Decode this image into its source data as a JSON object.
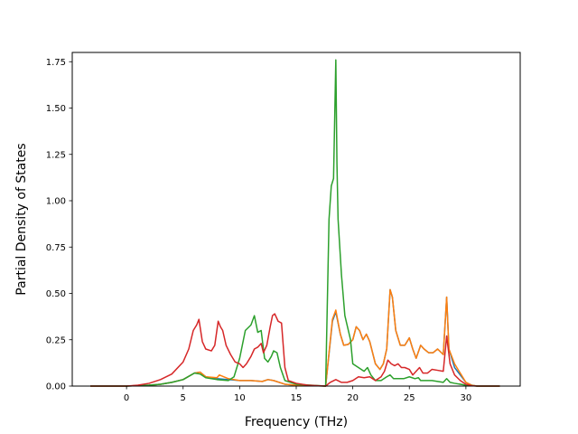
{
  "chart_data": {
    "type": "line",
    "title": "",
    "xlabel": "Frequency (THz)",
    "ylabel": "Partial Density of States",
    "xlim": [
      -4.8,
      34.8
    ],
    "ylim": [
      0.0,
      1.8
    ],
    "xticks": [
      0,
      5,
      10,
      15,
      20,
      25,
      30
    ],
    "xtick_labels": [
      "0",
      "5",
      "10",
      "15",
      "20",
      "25",
      "30"
    ],
    "yticks": [
      0.0,
      0.25,
      0.5,
      0.75,
      1.0,
      1.25,
      1.5,
      1.75
    ],
    "ytick_labels": [
      "0.00",
      "0.25",
      "0.50",
      "0.75",
      "1.00",
      "1.25",
      "1.50",
      "1.75"
    ],
    "grid": false,
    "legend": false,
    "series": [
      {
        "color": "#1f77b4",
        "points": [
          [
            -3.2,
            0
          ],
          [
            0,
            0
          ],
          [
            2,
            0.005
          ],
          [
            3,
            0.01
          ],
          [
            4,
            0.02
          ],
          [
            5,
            0.035
          ],
          [
            6,
            0.07
          ],
          [
            6.5,
            0.075
          ],
          [
            7,
            0.05
          ],
          [
            8,
            0.04
          ],
          [
            9,
            0.035
          ],
          [
            10,
            0.03
          ],
          [
            11,
            0.03
          ],
          [
            12,
            0.025
          ],
          [
            12.5,
            0.035
          ],
          [
            13,
            0.03
          ],
          [
            14,
            0.01
          ],
          [
            15,
            0.005
          ],
          [
            17.6,
            0
          ],
          [
            18.2,
            0.35
          ],
          [
            18.5,
            0.4
          ],
          [
            18.9,
            0.28
          ],
          [
            19.2,
            0.22
          ],
          [
            19.6,
            0.225
          ],
          [
            20,
            0.25
          ],
          [
            20.3,
            0.32
          ],
          [
            20.6,
            0.3
          ],
          [
            20.9,
            0.25
          ],
          [
            21.2,
            0.28
          ],
          [
            21.5,
            0.24
          ],
          [
            22,
            0.12
          ],
          [
            22.4,
            0.09
          ],
          [
            22.7,
            0.12
          ],
          [
            23,
            0.2
          ],
          [
            23.3,
            0.52
          ],
          [
            23.5,
            0.48
          ],
          [
            23.8,
            0.3
          ],
          [
            24.2,
            0.22
          ],
          [
            24.6,
            0.22
          ],
          [
            25,
            0.26
          ],
          [
            25.3,
            0.2
          ],
          [
            25.6,
            0.15
          ],
          [
            26,
            0.22
          ],
          [
            26.3,
            0.2
          ],
          [
            26.7,
            0.18
          ],
          [
            27.1,
            0.18
          ],
          [
            27.5,
            0.2
          ],
          [
            28,
            0.17
          ],
          [
            28.3,
            0.48
          ],
          [
            28.5,
            0.2
          ],
          [
            29,
            0.1
          ],
          [
            29.5,
            0.06
          ],
          [
            30,
            0.02
          ],
          [
            30.5,
            0.005
          ],
          [
            31,
            0
          ],
          [
            33,
            0
          ]
        ]
      },
      {
        "color": "#ff7f0e",
        "points": [
          [
            -3.2,
            0
          ],
          [
            0,
            0
          ],
          [
            2,
            0.005
          ],
          [
            3,
            0.01
          ],
          [
            4,
            0.02
          ],
          [
            5,
            0.035
          ],
          [
            6,
            0.07
          ],
          [
            6.5,
            0.075
          ],
          [
            7,
            0.05
          ],
          [
            8,
            0.045
          ],
          [
            8.2,
            0.06
          ],
          [
            9,
            0.04
          ],
          [
            10,
            0.03
          ],
          [
            11,
            0.03
          ],
          [
            12,
            0.025
          ],
          [
            12.5,
            0.035
          ],
          [
            13,
            0.03
          ],
          [
            14,
            0.01
          ],
          [
            15,
            0.005
          ],
          [
            17.6,
            0
          ],
          [
            18.2,
            0.36
          ],
          [
            18.5,
            0.41
          ],
          [
            18.9,
            0.28
          ],
          [
            19.2,
            0.22
          ],
          [
            19.6,
            0.225
          ],
          [
            20,
            0.25
          ],
          [
            20.3,
            0.32
          ],
          [
            20.6,
            0.3
          ],
          [
            20.9,
            0.25
          ],
          [
            21.2,
            0.28
          ],
          [
            21.5,
            0.24
          ],
          [
            22,
            0.12
          ],
          [
            22.4,
            0.09
          ],
          [
            22.7,
            0.12
          ],
          [
            23,
            0.2
          ],
          [
            23.3,
            0.52
          ],
          [
            23.5,
            0.48
          ],
          [
            23.8,
            0.3
          ],
          [
            24.2,
            0.22
          ],
          [
            24.6,
            0.22
          ],
          [
            25,
            0.26
          ],
          [
            25.3,
            0.2
          ],
          [
            25.6,
            0.15
          ],
          [
            26,
            0.22
          ],
          [
            26.3,
            0.2
          ],
          [
            26.7,
            0.18
          ],
          [
            27.1,
            0.18
          ],
          [
            27.5,
            0.2
          ],
          [
            28,
            0.17
          ],
          [
            28.3,
            0.48
          ],
          [
            28.5,
            0.2
          ],
          [
            29,
            0.12
          ],
          [
            29.5,
            0.07
          ],
          [
            30,
            0.02
          ],
          [
            30.5,
            0.005
          ],
          [
            31,
            0
          ],
          [
            33,
            0
          ]
        ]
      },
      {
        "color": "#2ca02c",
        "points": [
          [
            -3.2,
            0
          ],
          [
            0,
            0
          ],
          [
            2,
            0.005
          ],
          [
            3,
            0.01
          ],
          [
            4,
            0.02
          ],
          [
            5,
            0.035
          ],
          [
            6,
            0.07
          ],
          [
            6.5,
            0.065
          ],
          [
            7,
            0.045
          ],
          [
            8,
            0.035
          ],
          [
            9,
            0.03
          ],
          [
            9.5,
            0.05
          ],
          [
            10,
            0.15
          ],
          [
            10.5,
            0.3
          ],
          [
            11,
            0.33
          ],
          [
            11.3,
            0.38
          ],
          [
            11.6,
            0.29
          ],
          [
            11.9,
            0.3
          ],
          [
            12.2,
            0.15
          ],
          [
            12.5,
            0.13
          ],
          [
            12.8,
            0.16
          ],
          [
            13,
            0.19
          ],
          [
            13.3,
            0.18
          ],
          [
            13.6,
            0.1
          ],
          [
            14,
            0.03
          ],
          [
            15,
            0.01
          ],
          [
            17.6,
            0
          ],
          [
            17.9,
            0.9
          ],
          [
            18.1,
            1.08
          ],
          [
            18.3,
            1.12
          ],
          [
            18.5,
            1.76
          ],
          [
            18.6,
            1.2
          ],
          [
            18.7,
            0.9
          ],
          [
            19,
            0.6
          ],
          [
            19.3,
            0.38
          ],
          [
            19.8,
            0.25
          ],
          [
            20,
            0.12
          ],
          [
            20.5,
            0.1
          ],
          [
            21,
            0.08
          ],
          [
            21.3,
            0.1
          ],
          [
            21.6,
            0.06
          ],
          [
            22,
            0.03
          ],
          [
            22.5,
            0.03
          ],
          [
            23,
            0.05
          ],
          [
            23.3,
            0.06
          ],
          [
            23.6,
            0.04
          ],
          [
            24,
            0.04
          ],
          [
            24.5,
            0.04
          ],
          [
            25,
            0.05
          ],
          [
            25.5,
            0.04
          ],
          [
            25.8,
            0.045
          ],
          [
            26,
            0.03
          ],
          [
            27,
            0.03
          ],
          [
            28,
            0.02
          ],
          [
            28.3,
            0.04
          ],
          [
            28.6,
            0.02
          ],
          [
            29,
            0.015
          ],
          [
            30,
            0.005
          ],
          [
            31,
            0
          ],
          [
            33,
            0
          ]
        ]
      },
      {
        "color": "#d62728",
        "points": [
          [
            -3.2,
            0
          ],
          [
            0,
            0
          ],
          [
            1,
            0.005
          ],
          [
            2,
            0.015
          ],
          [
            3,
            0.035
          ],
          [
            4,
            0.065
          ],
          [
            5,
            0.13
          ],
          [
            5.5,
            0.2
          ],
          [
            5.9,
            0.3
          ],
          [
            6.2,
            0.33
          ],
          [
            6.4,
            0.36
          ],
          [
            6.7,
            0.24
          ],
          [
            7,
            0.2
          ],
          [
            7.5,
            0.19
          ],
          [
            7.8,
            0.22
          ],
          [
            8.1,
            0.35
          ],
          [
            8.3,
            0.32
          ],
          [
            8.5,
            0.3
          ],
          [
            8.8,
            0.22
          ],
          [
            9.2,
            0.17
          ],
          [
            9.6,
            0.13
          ],
          [
            10,
            0.12
          ],
          [
            10.3,
            0.1
          ],
          [
            10.6,
            0.12
          ],
          [
            11,
            0.16
          ],
          [
            11.3,
            0.2
          ],
          [
            11.6,
            0.21
          ],
          [
            11.9,
            0.23
          ],
          [
            12.1,
            0.18
          ],
          [
            12.4,
            0.22
          ],
          [
            12.7,
            0.32
          ],
          [
            12.9,
            0.38
          ],
          [
            13.1,
            0.39
          ],
          [
            13.4,
            0.35
          ],
          [
            13.7,
            0.34
          ],
          [
            14,
            0.1
          ],
          [
            14.3,
            0.03
          ],
          [
            15,
            0.015
          ],
          [
            16,
            0.005
          ],
          [
            17.6,
            0
          ],
          [
            18,
            0.02
          ],
          [
            18.5,
            0.035
          ],
          [
            19,
            0.02
          ],
          [
            19.5,
            0.02
          ],
          [
            20,
            0.03
          ],
          [
            20.5,
            0.05
          ],
          [
            21,
            0.045
          ],
          [
            21.5,
            0.05
          ],
          [
            22,
            0.03
          ],
          [
            22.5,
            0.05
          ],
          [
            22.8,
            0.08
          ],
          [
            23.1,
            0.14
          ],
          [
            23.4,
            0.12
          ],
          [
            23.7,
            0.11
          ],
          [
            24,
            0.12
          ],
          [
            24.3,
            0.1
          ],
          [
            24.6,
            0.1
          ],
          [
            25,
            0.09
          ],
          [
            25.3,
            0.06
          ],
          [
            25.6,
            0.08
          ],
          [
            25.9,
            0.1
          ],
          [
            26.2,
            0.07
          ],
          [
            26.6,
            0.07
          ],
          [
            27,
            0.09
          ],
          [
            27.5,
            0.085
          ],
          [
            28,
            0.08
          ],
          [
            28.3,
            0.27
          ],
          [
            28.6,
            0.12
          ],
          [
            29,
            0.06
          ],
          [
            29.5,
            0.03
          ],
          [
            30,
            0.01
          ],
          [
            30.5,
            0.002
          ],
          [
            31,
            0
          ],
          [
            33,
            0
          ]
        ]
      }
    ]
  }
}
